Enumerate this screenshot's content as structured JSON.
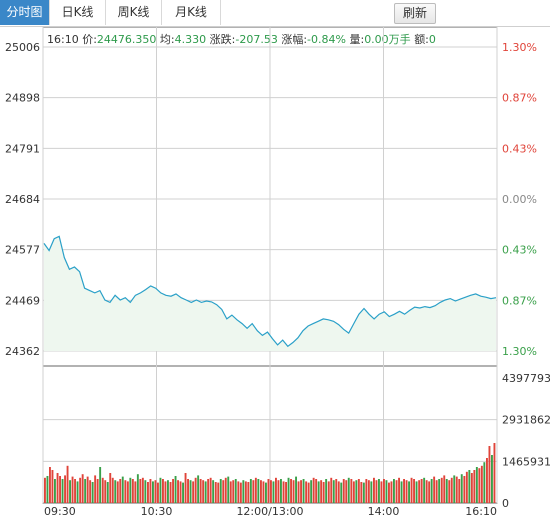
{
  "tabs": [
    {
      "label": "分时图",
      "active": true
    },
    {
      "label": "日K线",
      "active": false
    },
    {
      "label": "周K线",
      "active": false
    },
    {
      "label": "月K线",
      "active": false
    }
  ],
  "refresh_label": "刷新",
  "info": {
    "time": "16:10",
    "price_label": "价:",
    "price": "24476.350",
    "avg_label": "均:",
    "avg": "4.330",
    "change_label": "涨跌:",
    "change": "-207.53",
    "pct_label": "涨幅:",
    "pct": "-0.84%",
    "vol_label": "量:",
    "vol": "0.00万手",
    "amt_label": "额:",
    "amt": "0"
  },
  "colors": {
    "line": "#2aa0c8",
    "fill": "#eef7ef",
    "up": "#e0443a",
    "down": "#3aa04a",
    "grid": "#d0d0d0",
    "axis": "#666666"
  },
  "chart_data": {
    "type": "line",
    "y_ticks_left": [
      "25006",
      "24898",
      "24791",
      "24684",
      "24577",
      "24469",
      "24362"
    ],
    "y_ticks_right": [
      "1.30%",
      "0.87%",
      "0.43%",
      "0.00%",
      "0.43%",
      "0.87%",
      "1.30%"
    ],
    "y_ticks_right_colors": [
      "up",
      "up",
      "up",
      "neutral",
      "down",
      "down",
      "down"
    ],
    "ylim": [
      24362,
      25006
    ],
    "x_ticks": [
      "09:30",
      "10:30",
      "12:00/13:00",
      "14:00",
      "16:10"
    ],
    "volume_ticks": [
      "4397793",
      "2931862",
      "1465931",
      "0"
    ],
    "volume_max": 4397793,
    "price_series": [
      [
        0,
        24590
      ],
      [
        2,
        24575
      ],
      [
        4,
        24600
      ],
      [
        6,
        24605
      ],
      [
        8,
        24560
      ],
      [
        10,
        24535
      ],
      [
        12,
        24540
      ],
      [
        14,
        24530
      ],
      [
        16,
        24495
      ],
      [
        18,
        24490
      ],
      [
        20,
        24485
      ],
      [
        22,
        24490
      ],
      [
        24,
        24470
      ],
      [
        26,
        24465
      ],
      [
        28,
        24480
      ],
      [
        30,
        24470
      ],
      [
        32,
        24475
      ],
      [
        34,
        24465
      ],
      [
        36,
        24480
      ],
      [
        38,
        24485
      ],
      [
        40,
        24492
      ],
      [
        42,
        24500
      ],
      [
        44,
        24495
      ],
      [
        46,
        24485
      ],
      [
        48,
        24480
      ],
      [
        50,
        24478
      ],
      [
        52,
        24483
      ],
      [
        54,
        24475
      ],
      [
        56,
        24470
      ],
      [
        58,
        24465
      ],
      [
        60,
        24470
      ],
      [
        62,
        24465
      ],
      [
        64,
        24468
      ],
      [
        66,
        24466
      ],
      [
        68,
        24460
      ],
      [
        70,
        24450
      ],
      [
        72,
        24430
      ],
      [
        74,
        24438
      ],
      [
        76,
        24428
      ],
      [
        78,
        24420
      ],
      [
        80,
        24410
      ],
      [
        82,
        24420
      ],
      [
        84,
        24405
      ],
      [
        86,
        24395
      ],
      [
        88,
        24402
      ],
      [
        90,
        24388
      ],
      [
        92,
        24375
      ],
      [
        94,
        24385
      ],
      [
        96,
        24372
      ],
      [
        98,
        24380
      ],
      [
        100,
        24390
      ],
      [
        102,
        24405
      ],
      [
        104,
        24415
      ],
      [
        106,
        24420
      ],
      [
        108,
        24425
      ],
      [
        110,
        24430
      ],
      [
        112,
        24428
      ],
      [
        114,
        24425
      ],
      [
        116,
        24418
      ],
      [
        118,
        24408
      ],
      [
        120,
        24400
      ],
      [
        122,
        24420
      ],
      [
        124,
        24440
      ],
      [
        126,
        24452
      ],
      [
        128,
        24440
      ],
      [
        130,
        24430
      ],
      [
        132,
        24440
      ],
      [
        134,
        24445
      ],
      [
        136,
        24435
      ],
      [
        138,
        24440
      ],
      [
        140,
        24446
      ],
      [
        142,
        24440
      ],
      [
        144,
        24448
      ],
      [
        146,
        24455
      ],
      [
        148,
        24453
      ],
      [
        150,
        24456
      ],
      [
        152,
        24454
      ],
      [
        154,
        24458
      ],
      [
        156,
        24465
      ],
      [
        158,
        24470
      ],
      [
        160,
        24473
      ],
      [
        162,
        24468
      ],
      [
        164,
        24472
      ],
      [
        166,
        24476
      ],
      [
        168,
        24480
      ],
      [
        170,
        24483
      ],
      [
        172,
        24478
      ],
      [
        174,
        24476
      ],
      [
        176,
        24473
      ],
      [
        178,
        24475
      ]
    ],
    "volume_bars": [
      0.42,
      0.45,
      0.6,
      0.55,
      0.4,
      0.5,
      0.45,
      0.4,
      0.46,
      0.62,
      0.38,
      0.44,
      0.4,
      0.36,
      0.42,
      0.48,
      0.4,
      0.44,
      0.38,
      0.35,
      0.46,
      0.4,
      0.6,
      0.42,
      0.38,
      0.35,
      0.5,
      0.42,
      0.38,
      0.36,
      0.4,
      0.44,
      0.38,
      0.36,
      0.42,
      0.4,
      0.36,
      0.48,
      0.4,
      0.42,
      0.38,
      0.35,
      0.4,
      0.36,
      0.38,
      0.34,
      0.42,
      0.4,
      0.36,
      0.38,
      0.35,
      0.4,
      0.45,
      0.38,
      0.36,
      0.34,
      0.5,
      0.4,
      0.38,
      0.36,
      0.42,
      0.46,
      0.4,
      0.38,
      0.36,
      0.4,
      0.42,
      0.38,
      0.35,
      0.34,
      0.4,
      0.38,
      0.42,
      0.44,
      0.36,
      0.38,
      0.4,
      0.36,
      0.34,
      0.38,
      0.36,
      0.35,
      0.4,
      0.38,
      0.42,
      0.4,
      0.38,
      0.36,
      0.34,
      0.4,
      0.38,
      0.36,
      0.42,
      0.38,
      0.4,
      0.36,
      0.35,
      0.42,
      0.4,
      0.38,
      0.44,
      0.36,
      0.38,
      0.4,
      0.36,
      0.34,
      0.38,
      0.42,
      0.4,
      0.36,
      0.38,
      0.35,
      0.4,
      0.36,
      0.42,
      0.38,
      0.4,
      0.36,
      0.34,
      0.4,
      0.38,
      0.42,
      0.4,
      0.36,
      0.38,
      0.4,
      0.35,
      0.34,
      0.4,
      0.38,
      0.36,
      0.42,
      0.38,
      0.4,
      0.36,
      0.4,
      0.38,
      0.34,
      0.36,
      0.4,
      0.38,
      0.42,
      0.36,
      0.4,
      0.38,
      0.36,
      0.42,
      0.4,
      0.36,
      0.38,
      0.4,
      0.42,
      0.38,
      0.36,
      0.4,
      0.44,
      0.38,
      0.4,
      0.42,
      0.46,
      0.4,
      0.38,
      0.42,
      0.46,
      0.44,
      0.4,
      0.48,
      0.45,
      0.52,
      0.55,
      0.5,
      0.55,
      0.6,
      0.58,
      0.62,
      0.68,
      0.75,
      0.95,
      0.8,
      1.0
    ]
  }
}
